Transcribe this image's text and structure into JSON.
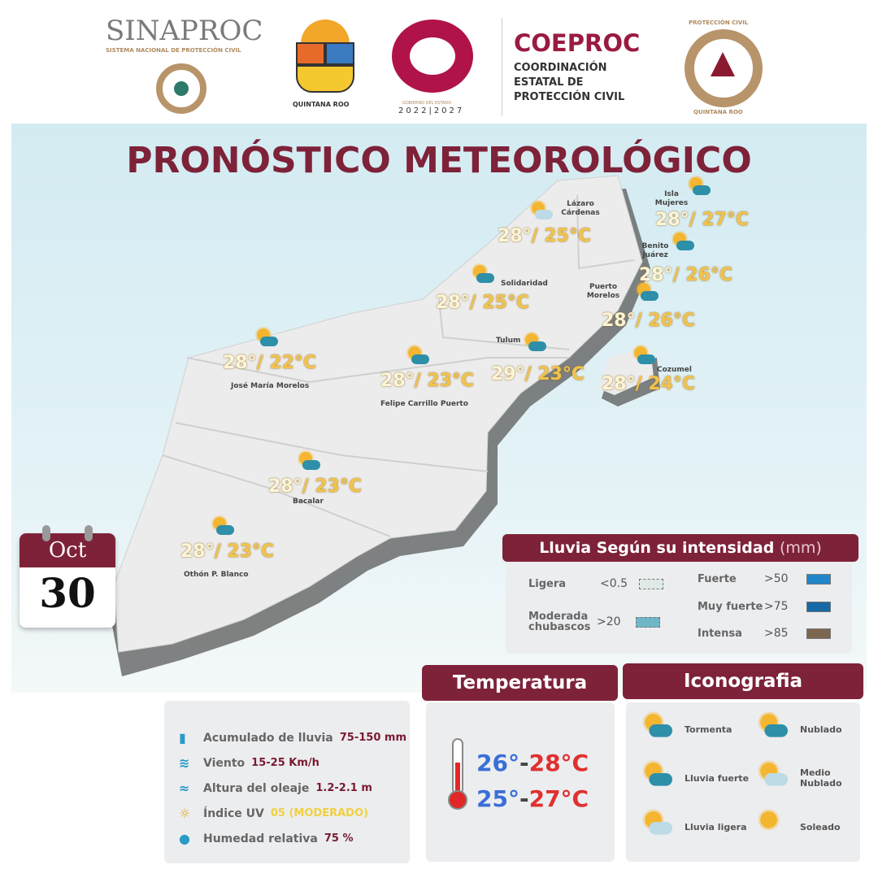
{
  "header": {
    "sinaproc": {
      "name": "SINAPROC",
      "subtitle": "SISTEMA NACIONAL DE PROTECCIÓN CIVIL"
    },
    "state_logo": {
      "name": "QUINTANA ROO"
    },
    "government_logo": {
      "subtitle": "GOBIERNO DEL ESTADO",
      "years": "2022|2027"
    },
    "coeproc": {
      "name": "COEPROC",
      "line1": "COORDINACIÓN",
      "line2": "ESTATAL DE",
      "line3": "PROTECCIÓN CIVIL"
    },
    "pc_logo": {
      "top": "PROTECCIÓN CIVIL",
      "bottom": "QUINTANA ROO"
    }
  },
  "title": "PRONÓSTICO METEOROLÓGICO",
  "date": {
    "month": "Oct",
    "day": "30"
  },
  "colors": {
    "brand": "#7e2239",
    "temp_min": "#f2c24c",
    "cold": "#3a6fd8",
    "hot": "#e03030"
  },
  "cities": [
    {
      "name": "Lázaro Cárdenas",
      "max": "28°",
      "min": "/ 25°C",
      "icon": "rain-light-icon"
    },
    {
      "name": "Isla Mujeres",
      "max": "28°",
      "min": "/ 27°C",
      "icon": "storm-icon"
    },
    {
      "name": "Benito Juárez",
      "max": "28°",
      "min": "/ 26°C",
      "icon": "storm-icon"
    },
    {
      "name": "Solidaridad",
      "max": "28°",
      "min": "/ 25°C",
      "icon": "storm-icon"
    },
    {
      "name": "Puerto Morelos",
      "max": "28°",
      "min": "/ 26°C",
      "icon": "storm-icon"
    },
    {
      "name": "Tulum",
      "max": "29°",
      "min": "/ 23°C",
      "icon": "cloudy-icon"
    },
    {
      "name": "Cozumel",
      "max": "28°",
      "min": "/ 24°C",
      "icon": "storm-icon"
    },
    {
      "name": "José María Morelos",
      "max": "28°",
      "min": "/ 22°C",
      "icon": "storm-icon"
    },
    {
      "name": "Felipe Carrillo Puerto",
      "max": "28°",
      "min": "/ 23°C",
      "icon": "storm-icon"
    },
    {
      "name": "Bacalar",
      "max": "28°",
      "min": "/ 23°C",
      "icon": "storm-icon"
    },
    {
      "name": "Othón P. Blanco",
      "max": "28°",
      "min": "/ 23°C",
      "icon": "storm-icon"
    }
  ],
  "rain_legend": {
    "title": "Lluvia Según su intensidad",
    "unit": "(mm)",
    "items": [
      {
        "label": "Ligera",
        "value": "<0.5",
        "color": "#dfe9e6"
      },
      {
        "label": "Moderada chubascos",
        "value": ">20",
        "color": "#6fb6c6"
      },
      {
        "label": "Fuerte",
        "value": ">50",
        "color": "#1f86c9"
      },
      {
        "label": "Muy fuerte",
        "value": ">75",
        "color": "#1668a6"
      },
      {
        "label": "Intensa",
        "value": ">85",
        "color": "#7d6650"
      }
    ]
  },
  "info": [
    {
      "label": "Acumulado de lluvia",
      "value": "75-150 mm",
      "icon": "rain-gauge-icon"
    },
    {
      "label": "Viento",
      "value": "15-25 Km/h",
      "icon": "wind-icon"
    },
    {
      "label": "Altura del oleaje",
      "value": "1.2-2.1 m",
      "icon": "waves-icon"
    },
    {
      "label": "Índice UV",
      "value": "05 (MODERADO)",
      "icon": "uv-icon"
    },
    {
      "label": "Humedad relativa",
      "value": "75 %",
      "icon": "droplet-icon"
    }
  ],
  "temperature": {
    "title": "Temperatura",
    "ranges": [
      {
        "min": "26°",
        "max": "28°C"
      },
      {
        "min": "25°",
        "max": "27°C"
      }
    ]
  },
  "iconography": {
    "title": "Iconografia",
    "items": [
      {
        "label": "Tormenta",
        "icon": "storm-icon"
      },
      {
        "label": "Nublado",
        "icon": "cloudy-icon"
      },
      {
        "label": "Lluvia fuerte",
        "icon": "heavy-rain-icon"
      },
      {
        "label": "Medio Nublado",
        "icon": "partly-cloudy-icon"
      },
      {
        "label": "Lluvia ligera",
        "icon": "rain-light-icon"
      },
      {
        "label": "Soleado",
        "icon": "sunny-icon"
      }
    ]
  }
}
